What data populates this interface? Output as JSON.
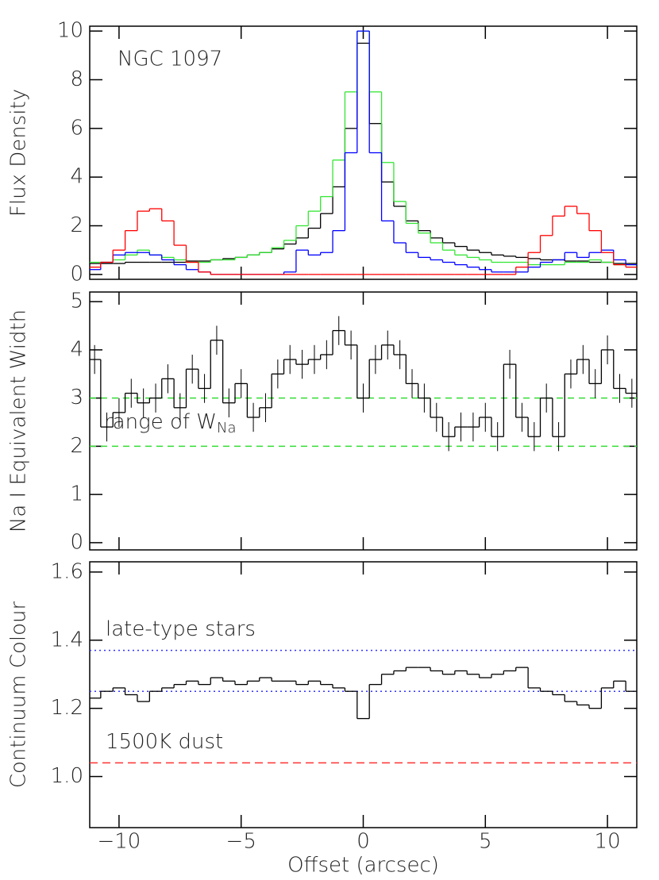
{
  "chart_data": [
    {
      "type": "step",
      "ylabel": "Flux Density",
      "annotation": "NGC 1097",
      "x": [
        -11,
        -10.5,
        -10,
        -9.5,
        -9,
        -8.5,
        -8,
        -7.5,
        -7,
        -6.5,
        -6,
        -5.5,
        -5,
        -4.5,
        -4,
        -3.5,
        -3,
        -2.5,
        -2,
        -1.5,
        -1,
        -0.5,
        0,
        0.5,
        1,
        1.5,
        2,
        2.5,
        3,
        3.5,
        4,
        4.5,
        5,
        5.5,
        6,
        6.5,
        7,
        7.5,
        8,
        8.5,
        9,
        9.5,
        10,
        10.5,
        11
      ],
      "xlim": [
        -11.2,
        11.2
      ],
      "ylim": [
        -0.2,
        10.2
      ],
      "yticks": [
        0,
        2,
        4,
        6,
        8,
        10
      ],
      "series": [
        {
          "color": "#000000",
          "values": [
            0.45,
            0.45,
            0.45,
            0.5,
            0.5,
            0.5,
            0.5,
            0.5,
            0.55,
            0.55,
            0.6,
            0.65,
            0.7,
            0.8,
            0.9,
            1.05,
            1.25,
            1.5,
            1.9,
            2.5,
            3.6,
            6.0,
            9.5,
            6.2,
            3.8,
            2.8,
            2.2,
            1.8,
            1.5,
            1.3,
            1.15,
            1.0,
            0.9,
            0.8,
            0.75,
            0.7,
            0.65,
            0.6,
            0.6,
            0.55,
            0.55,
            0.5,
            0.5,
            0.45,
            0.45
          ]
        },
        {
          "color": "#33e633",
          "values": [
            0.5,
            0.5,
            0.6,
            0.8,
            1.0,
            0.8,
            0.7,
            0.6,
            0.5,
            0.5,
            0.6,
            0.6,
            0.7,
            0.8,
            0.9,
            1.1,
            1.4,
            2.0,
            2.6,
            3.2,
            4.7,
            7.5,
            10,
            7.5,
            4.6,
            3.0,
            2.1,
            1.7,
            1.3,
            1.0,
            0.8,
            0.7,
            0.6,
            0.5,
            0.5,
            0.5,
            0.4,
            0.4,
            0.4,
            0.5,
            0.5,
            0.6,
            0.5,
            0.4,
            0.4
          ]
        },
        {
          "color": "#0000ff",
          "values": [
            0.2,
            0.5,
            0.8,
            0.9,
            0.9,
            0.8,
            0.6,
            0.4,
            0.2,
            0.1,
            0,
            0,
            0,
            0,
            0,
            0,
            0.1,
            1.0,
            0.8,
            0.9,
            1.8,
            5,
            10,
            5,
            2.2,
            1.3,
            0.9,
            0.7,
            0.6,
            0.5,
            0.4,
            0.3,
            0.2,
            0.1,
            0.1,
            0.1,
            0.3,
            0.5,
            0.6,
            0.9,
            0.7,
            0.9,
            1.0,
            0.6,
            0.4
          ]
        },
        {
          "color": "#ff0000",
          "values": [
            0.3,
            0.5,
            1.0,
            1.8,
            2.6,
            2.7,
            2.2,
            1.2,
            0.5,
            0.1,
            0,
            0,
            0,
            0,
            0,
            0,
            0,
            0,
            0,
            0,
            0,
            0,
            0,
            0,
            0,
            0,
            0,
            0,
            0,
            0,
            0,
            0,
            0,
            0,
            0,
            0.3,
            0.9,
            1.6,
            2.4,
            2.8,
            2.5,
            1.8,
            0.9,
            0.4,
            0.3
          ]
        }
      ]
    },
    {
      "type": "errorstep",
      "ylabel": "Na I Equivalent Width",
      "annotation": {
        "text": "range of W",
        "subscript": "Na"
      },
      "x": [
        -11,
        -10.5,
        -10,
        -9.5,
        -9,
        -8.5,
        -8,
        -7.5,
        -7,
        -6.5,
        -6,
        -5.5,
        -5,
        -4.5,
        -4,
        -3.5,
        -3,
        -2.5,
        -2,
        -1.5,
        -1,
        -0.5,
        0,
        0.5,
        1,
        1.5,
        2,
        2.5,
        3,
        3.5,
        4,
        4.5,
        5,
        5.5,
        6,
        6.5,
        7,
        7.5,
        8,
        8.5,
        9,
        9.5,
        10,
        10.5,
        11
      ],
      "xlim": [
        -11.2,
        11.2
      ],
      "ylim": [
        -0.15,
        5.2
      ],
      "yticks": [
        0,
        1,
        2,
        3,
        4,
        5
      ],
      "yerr": 0.3,
      "hlines": [
        {
          "value": 3,
          "color": "#33dd33",
          "dash": "8 6"
        },
        {
          "value": 2,
          "color": "#33dd33",
          "dash": "8 6"
        }
      ],
      "series": [
        {
          "color": "#000000",
          "values": [
            3.8,
            2.4,
            2.7,
            3.1,
            2.9,
            3.0,
            3.4,
            2.8,
            3.6,
            3.2,
            4.2,
            2.9,
            3.3,
            2.6,
            2.8,
            3.5,
            3.8,
            3.7,
            3.8,
            3.9,
            4.4,
            4.1,
            3.0,
            3.8,
            4.1,
            3.9,
            3.3,
            3.0,
            2.6,
            2.2,
            2.4,
            2.4,
            2.6,
            2.2,
            3.7,
            2.6,
            2.2,
            3.0,
            2.2,
            3.5,
            3.8,
            3.3,
            4.0,
            3.2,
            3.1
          ]
        }
      ]
    },
    {
      "type": "step",
      "ylabel": "Continuum Colour",
      "xlabel": "Offset (arcsec)",
      "x": [
        -11,
        -10.5,
        -10,
        -9.5,
        -9,
        -8.5,
        -8,
        -7.5,
        -7,
        -6.5,
        -6,
        -5.5,
        -5,
        -4.5,
        -4,
        -3.5,
        -3,
        -2.5,
        -2,
        -1.5,
        -1,
        -0.5,
        0,
        0.5,
        1,
        1.5,
        2,
        2.5,
        3,
        3.5,
        4,
        4.5,
        5,
        5.5,
        6,
        6.5,
        7,
        7.5,
        8,
        8.5,
        9,
        9.5,
        10,
        10.5,
        11
      ],
      "xlim": [
        -11.2,
        11.2
      ],
      "ylim": [
        0.85,
        1.63
      ],
      "xticks": [
        {
          "value": -10,
          "label": "−10"
        },
        {
          "value": -5,
          "label": "−5"
        },
        0,
        5,
        10
      ],
      "yticks": [
        {
          "value": 1.0,
          "label": "1.0"
        },
        1.2,
        1.4,
        1.6
      ],
      "hlines": [
        {
          "value": 1.37,
          "color": "#3333ff",
          "dash": "2 4",
          "label": "late-type stars"
        },
        {
          "value": 1.25,
          "color": "#3333ff",
          "dash": "2 4"
        },
        {
          "value": 1.04,
          "color": "#ff3333",
          "dash": "10 6",
          "label": "1500K dust"
        }
      ],
      "series": [
        {
          "color": "#000000",
          "values": [
            1.23,
            1.25,
            1.26,
            1.24,
            1.22,
            1.25,
            1.26,
            1.27,
            1.28,
            1.27,
            1.29,
            1.28,
            1.27,
            1.28,
            1.29,
            1.28,
            1.28,
            1.27,
            1.28,
            1.27,
            1.26,
            1.25,
            1.17,
            1.27,
            1.3,
            1.31,
            1.32,
            1.32,
            1.31,
            1.3,
            1.31,
            1.3,
            1.29,
            1.3,
            1.31,
            1.32,
            1.26,
            1.25,
            1.24,
            1.22,
            1.21,
            1.2,
            1.26,
            1.28,
            1.25
          ]
        }
      ]
    }
  ]
}
